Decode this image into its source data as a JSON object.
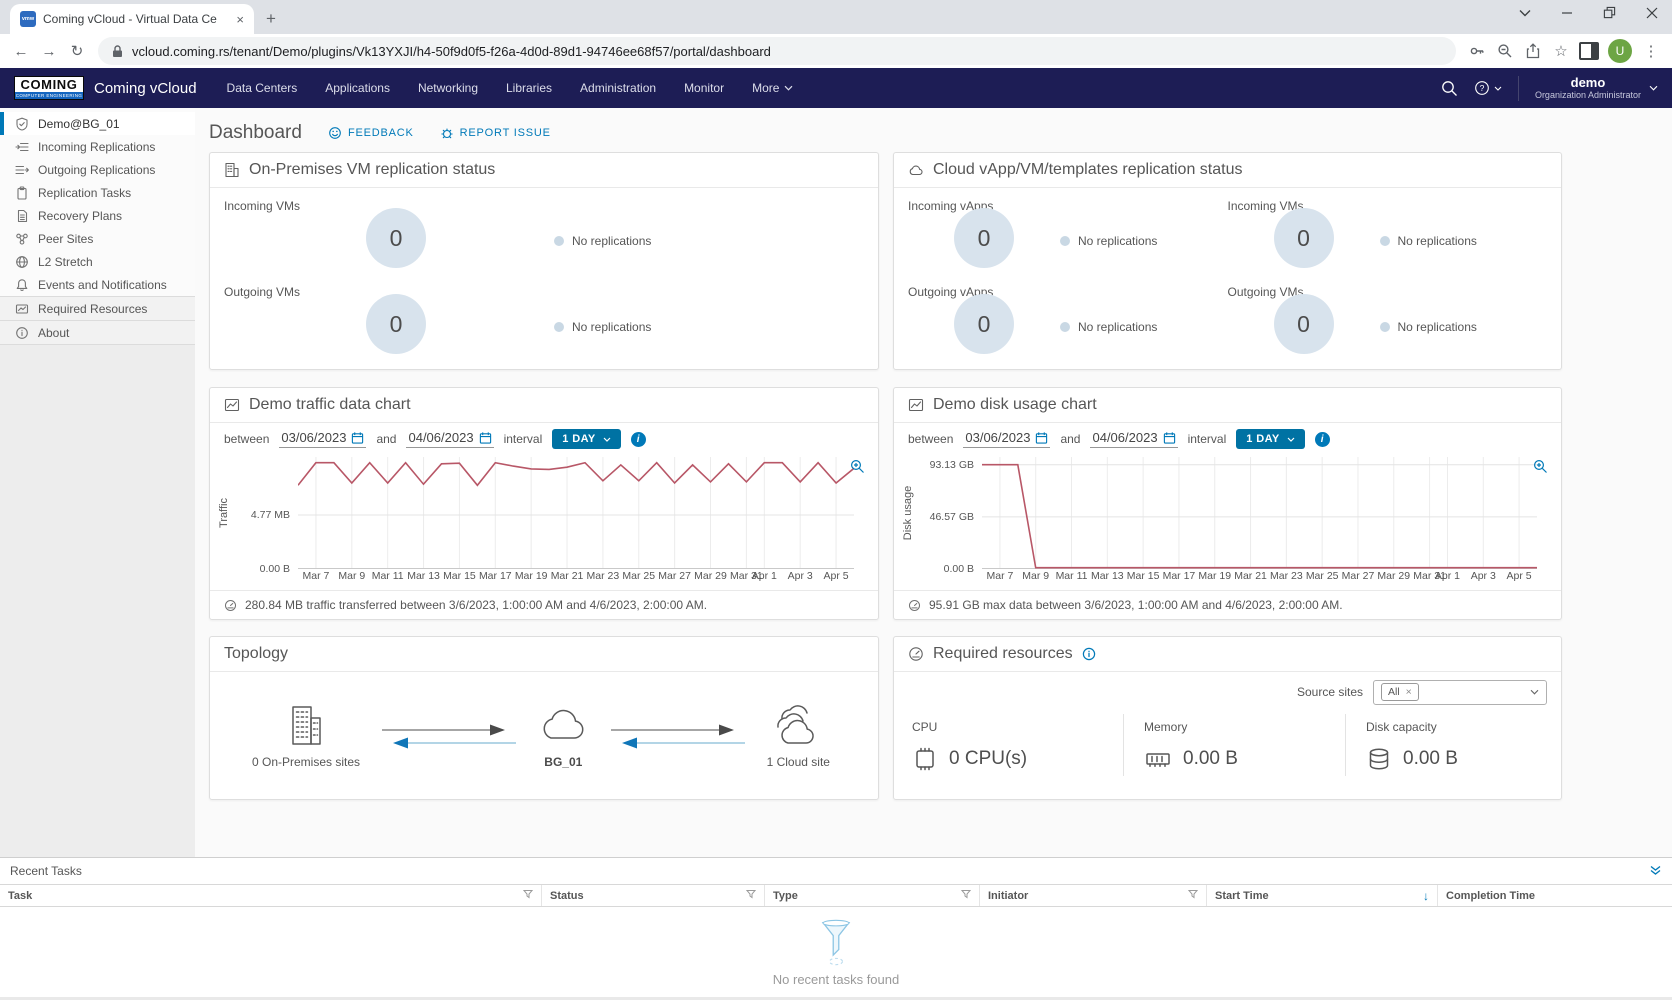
{
  "browser": {
    "tab_title": "Coming vCloud - Virtual Data Ce",
    "favicon_label": "vmw",
    "url": "vcloud.coming.rs/tenant/Demo/plugins/Vk13YXJI/h4-50f9d0f5-f26a-4d0d-89d1-94746ee68f57/portal/dashboard",
    "avatar_initial": "U"
  },
  "header": {
    "logo_line1": "COMING",
    "logo_line2": "COMPUTER ENGINEERING",
    "product": "Coming vCloud",
    "nav": [
      "Data Centers",
      "Applications",
      "Networking",
      "Libraries",
      "Administration",
      "Monitor",
      "More"
    ],
    "user": {
      "name": "demo",
      "role": "Organization Administrator"
    }
  },
  "sidebar": {
    "items": [
      "Demo@BG_01",
      "Incoming Replications",
      "Outgoing Replications",
      "Replication Tasks",
      "Recovery Plans",
      "Peer Sites",
      "L2 Stretch",
      "Events and Notifications",
      "Required Resources",
      "About"
    ]
  },
  "page": {
    "title": "Dashboard",
    "feedback": "FEEDBACK",
    "report_issue": "REPORT ISSUE"
  },
  "onprem_card": {
    "title": "On-Premises VM replication status",
    "sections": [
      {
        "label": "Incoming VMs",
        "value": "0",
        "legend": "No replications"
      },
      {
        "label": "Outgoing VMs",
        "value": "0",
        "legend": "No replications"
      }
    ]
  },
  "cloud_card": {
    "title": "Cloud vApp/VM/templates replication status",
    "sections": [
      {
        "label": "Incoming vApps",
        "value": "0",
        "legend": "No replications"
      },
      {
        "label": "Incoming VMs",
        "value": "0",
        "legend": "No replications"
      },
      {
        "label": "Outgoing vApps",
        "value": "0",
        "legend": "No replications"
      },
      {
        "label": "Outgoing VMs",
        "value": "0",
        "legend": "No replications"
      }
    ]
  },
  "traffic_card": {
    "title": "Demo traffic data chart",
    "between_label": "between",
    "start_date": "03/06/2023",
    "and_label": "and",
    "end_date": "04/06/2023",
    "interval_label": "interval",
    "interval_value": "1 DAY",
    "caption": "280.84 MB traffic transferred between 3/6/2023, 1:00:00 AM and 4/6/2023, 2:00:00 AM."
  },
  "disk_card": {
    "title": "Demo disk usage chart",
    "between_label": "between",
    "start_date": "03/06/2023",
    "and_label": "and",
    "end_date": "04/06/2023",
    "interval_label": "interval",
    "interval_value": "1 DAY",
    "caption": "95.91 GB max data between 3/6/2023, 1:00:00 AM and 4/6/2023, 2:00:00 AM."
  },
  "topology": {
    "title": "Topology",
    "nodes": [
      "0 On-Premises sites",
      "BG_01",
      "1 Cloud site"
    ]
  },
  "required": {
    "title": "Required resources",
    "source_sites_label": "Source sites",
    "source_chip": "All",
    "metrics": [
      {
        "label": "CPU",
        "value": "0 CPU(s)"
      },
      {
        "label": "Memory",
        "value": "0.00 B"
      },
      {
        "label": "Disk capacity",
        "value": "0.00 B"
      }
    ]
  },
  "recent_tasks": {
    "title": "Recent Tasks",
    "columns": [
      "Task",
      "Status",
      "Type",
      "Initiator",
      "Start Time",
      "Completion Time"
    ],
    "empty_message": "No recent tasks found"
  },
  "chart_data": [
    {
      "type": "line",
      "title": "Demo traffic data chart",
      "ylabel": "Traffic",
      "unit": "MB",
      "x_range": [
        "Mar 6 2023",
        "Apr 6 2023"
      ],
      "series": [
        {
          "name": "traffic",
          "values": [
            7.4,
            9.4,
            9.4,
            7.6,
            9.4,
            7.6,
            9.4,
            7.5,
            9.3,
            9.35,
            7.4,
            9.4,
            9.1,
            8.85,
            8.8,
            9.0,
            9.4,
            7.8,
            9.2,
            7.8,
            9.4,
            7.6,
            9.2,
            7.7,
            9.3,
            7.7,
            9.4,
            9.4,
            7.7,
            9.4,
            7.6,
            8.9
          ]
        }
      ],
      "yticks": [
        {
          "label": "0.00 B",
          "v": 0
        },
        {
          "label": "4.77 MB",
          "v": 4.77
        }
      ],
      "ylim": [
        0,
        9.9
      ],
      "xticks": [
        {
          "label": "Mar 7",
          "i": 1
        },
        {
          "label": "Mar 9",
          "i": 3
        },
        {
          "label": "Mar 11",
          "i": 5
        },
        {
          "label": "Mar 13",
          "i": 7
        },
        {
          "label": "Mar 15",
          "i": 9
        },
        {
          "label": "Mar 17",
          "i": 11
        },
        {
          "label": "Mar 19",
          "i": 13
        },
        {
          "label": "Mar 21",
          "i": 15
        },
        {
          "label": "Mar 23",
          "i": 17
        },
        {
          "label": "Mar 25",
          "i": 19
        },
        {
          "label": "Mar 27",
          "i": 21
        },
        {
          "label": "Mar 29",
          "i": 23
        },
        {
          "label": "Mar 31",
          "i": 25
        },
        {
          "label": "Apr 1",
          "i": 26
        },
        {
          "label": "Apr 3",
          "i": 28
        },
        {
          "label": "Apr 5",
          "i": 30
        }
      ],
      "line_color": "#b85767",
      "grid": true,
      "legend_position": "none"
    },
    {
      "type": "line",
      "title": "Demo disk usage chart",
      "ylabel": "Disk usage",
      "unit": "GB",
      "x_range": [
        "Mar 6 2023",
        "Apr 6 2023"
      ],
      "series": [
        {
          "name": "disk_usage",
          "values": [
            93.13,
            93.13,
            93.13,
            1.2,
            1.2,
            1.2,
            1.2,
            1.2,
            1.2,
            1.2,
            1.2,
            1.2,
            1.2,
            1.2,
            1.2,
            1.2,
            1.2,
            1.2,
            1.2,
            1.2,
            1.2,
            1.2,
            1.2,
            1.2,
            1.2,
            1.2,
            1.2,
            1.2,
            1.2,
            1.2,
            1.2,
            1.2
          ]
        }
      ],
      "yticks": [
        {
          "label": "0.00 B",
          "v": 0
        },
        {
          "label": "46.57 GB",
          "v": 46.57
        },
        {
          "label": "93.13 GB",
          "v": 93.13
        }
      ],
      "ylim": [
        0,
        100
      ],
      "xticks": [
        {
          "label": "Mar 7",
          "i": 1
        },
        {
          "label": "Mar 9",
          "i": 3
        },
        {
          "label": "Mar 11",
          "i": 5
        },
        {
          "label": "Mar 13",
          "i": 7
        },
        {
          "label": "Mar 15",
          "i": 9
        },
        {
          "label": "Mar 17",
          "i": 11
        },
        {
          "label": "Mar 19",
          "i": 13
        },
        {
          "label": "Mar 21",
          "i": 15
        },
        {
          "label": "Mar 23",
          "i": 17
        },
        {
          "label": "Mar 25",
          "i": 19
        },
        {
          "label": "Mar 27",
          "i": 21
        },
        {
          "label": "Mar 29",
          "i": 23
        },
        {
          "label": "Mar 31",
          "i": 25
        },
        {
          "label": "Apr 1",
          "i": 26
        },
        {
          "label": "Apr 3",
          "i": 28
        },
        {
          "label": "Apr 5",
          "i": 30
        }
      ],
      "line_color": "#b85767",
      "grid": true,
      "legend_position": "none"
    }
  ],
  "colors": {
    "header_navy": "#1d1d55",
    "accent_blue": "#0079b8",
    "button_blue": "#0072a3",
    "chart_line": "#b85767",
    "donut_fill": "#d8e3ed",
    "avatar_green": "#6da544"
  }
}
